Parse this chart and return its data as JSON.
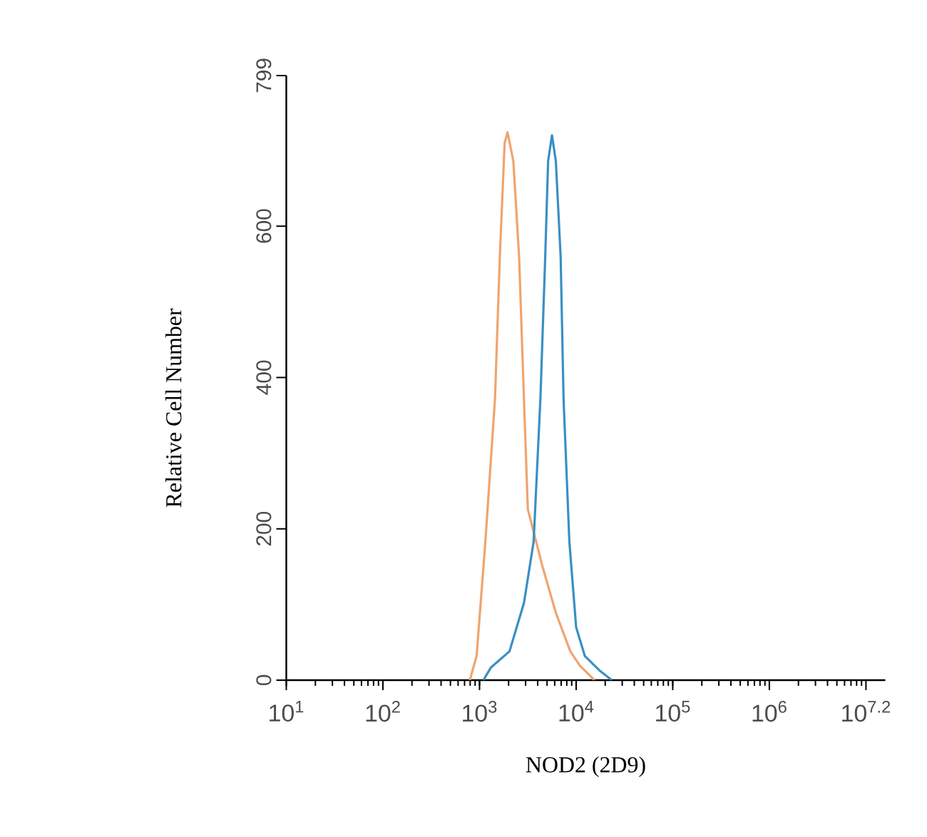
{
  "chart_data": {
    "type": "line",
    "xlabel": "NOD2 (2D9)",
    "ylabel": "Relative Cell Number",
    "log": "x",
    "grid": false,
    "marker": "none",
    "line_style": "solid",
    "xlim": [
      10,
      15848932
    ],
    "ylim": [
      0,
      799
    ],
    "xticks": [
      {
        "value": 10,
        "label": "10$^{1}$"
      },
      {
        "value": 100,
        "label": "10$^{2}$"
      },
      {
        "value": 1000,
        "label": "10$^{3}$"
      },
      {
        "value": 10000,
        "label": "10$^{4}$"
      },
      {
        "value": 100000,
        "label": "10$^{5}$"
      },
      {
        "value": 1000000,
        "label": "10$^{6}$"
      },
      {
        "value": 10000000,
        "label": "10$^{7.2}$"
      }
    ],
    "yticks": [
      0,
      200,
      400,
      600,
      799
    ],
    "series": [
      {
        "color": "#f0a46e",
        "x": [
          794,
          933,
          1148,
          1445,
          1622,
          1820,
          1950,
          2239,
          2570,
          2884,
          3162,
          4467,
          6166,
          8710,
          10965,
          15488
        ],
        "values": [
          0,
          32,
          182,
          371,
          559,
          710,
          724,
          686,
          559,
          371,
          226,
          151,
          89,
          38,
          19,
          0
        ]
      },
      {
        "color": "#3a8fc4",
        "x": [
          1096,
          1318,
          2042,
          2884,
          3631,
          4266,
          4786,
          5129,
          5623,
          6166,
          6918,
          7413,
          8511,
          10000,
          12303,
          17378,
          23442
        ],
        "values": [
          0,
          17,
          38,
          102,
          183,
          371,
          559,
          686,
          720,
          686,
          559,
          371,
          183,
          70,
          32,
          13,
          0
        ]
      }
    ]
  }
}
